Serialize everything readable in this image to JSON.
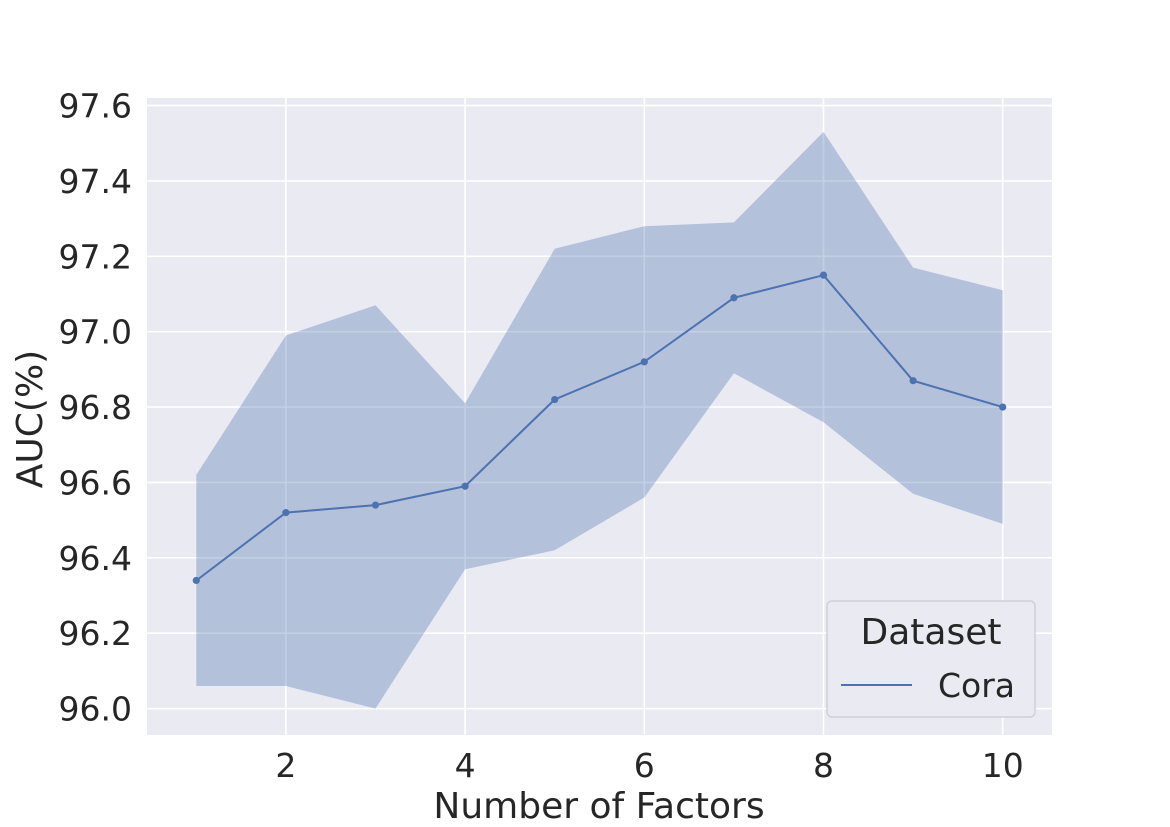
{
  "chart_data": {
    "type": "line",
    "title": "",
    "xlabel": "Number of Factors",
    "ylabel": "AUC(%)",
    "x": [
      1,
      2,
      3,
      4,
      5,
      6,
      7,
      8,
      9,
      10
    ],
    "xlim": [
      0.45,
      10.55
    ],
    "ylim": [
      95.93,
      97.62
    ],
    "xticks": [
      2,
      4,
      6,
      8,
      10
    ],
    "yticks": [
      96.0,
      96.2,
      96.4,
      96.6,
      96.8,
      97.0,
      97.2,
      97.4,
      97.6
    ],
    "ytick_labels": [
      "96.0",
      "96.2",
      "96.4",
      "96.6",
      "96.8",
      "97.0",
      "97.2",
      "97.4",
      "97.6"
    ],
    "grid": true,
    "series": [
      {
        "name": "Cora",
        "values": [
          96.34,
          96.52,
          96.54,
          96.59,
          96.82,
          96.92,
          97.09,
          97.15,
          96.87,
          96.8
        ],
        "band_upper": [
          96.62,
          96.99,
          97.07,
          96.81,
          97.22,
          97.28,
          97.29,
          97.53,
          97.17,
          97.11
        ],
        "band_lower": [
          96.06,
          96.06,
          96.0,
          96.37,
          96.42,
          96.56,
          96.89,
          96.76,
          96.57,
          96.49
        ],
        "color": "#4c72b0",
        "band_color": "#4c72b0"
      }
    ],
    "legend": {
      "title": "Dataset",
      "placement": "lower-right"
    },
    "colors": {
      "background": "#eaeaf2",
      "grid": "#ffffff",
      "text": "#262626"
    }
  }
}
